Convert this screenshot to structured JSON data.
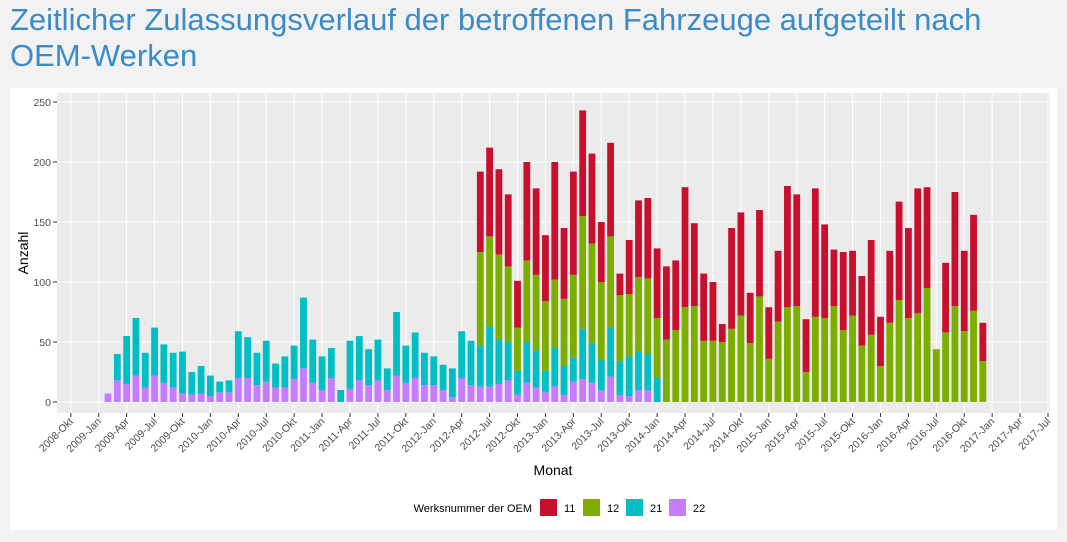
{
  "chart_data": {
    "type": "stacked-bar",
    "title": "Zeitlicher Zulassungsverlauf der betroffenen Fahrzeuge aufgeteilt nach OEM-Werken",
    "x_label": "Monat",
    "y_label": "Anzahl",
    "legend_title": "Werksnummer der OEM",
    "legend": "bottom",
    "grid": true,
    "x": [
      "2009-02",
      "2009-03",
      "2009-04",
      "2009-05",
      "2009-06",
      "2009-07",
      "2009-08",
      "2009-09",
      "2009-10",
      "2009-11",
      "2009-12",
      "2010-01",
      "2010-02",
      "2010-03",
      "2010-04",
      "2010-05",
      "2010-06",
      "2010-07",
      "2010-08",
      "2010-09",
      "2010-10",
      "2010-11",
      "2010-12",
      "2011-01",
      "2011-02",
      "2011-03",
      "2011-04",
      "2011-05",
      "2011-06",
      "2011-07",
      "2011-08",
      "2011-09",
      "2011-10",
      "2011-11",
      "2011-12",
      "2012-01",
      "2012-02",
      "2012-03",
      "2012-04",
      "2012-05",
      "2012-06",
      "2012-07",
      "2012-08",
      "2012-09",
      "2012-10",
      "2012-11",
      "2012-12",
      "2013-01",
      "2013-02",
      "2013-03",
      "2013-04",
      "2013-05",
      "2013-06",
      "2013-07",
      "2013-08",
      "2013-09",
      "2013-10",
      "2013-11",
      "2013-12",
      "2014-01",
      "2014-02",
      "2014-03",
      "2014-04",
      "2014-05",
      "2014-06",
      "2014-07",
      "2014-08",
      "2014-09",
      "2014-10",
      "2014-11",
      "2014-12",
      "2015-01",
      "2015-02",
      "2015-03",
      "2015-04",
      "2015-05",
      "2015-06",
      "2015-07",
      "2015-08",
      "2015-09",
      "2015-10",
      "2015-11",
      "2015-12",
      "2016-01",
      "2016-02",
      "2016-03",
      "2016-04",
      "2016-05",
      "2016-06",
      "2016-07",
      "2016-08",
      "2016-09",
      "2016-10",
      "2016-11",
      "2016-12"
    ],
    "series": [
      {
        "name": "11",
        "color": "#c8102e",
        "values": [
          0,
          0,
          0,
          0,
          0,
          0,
          0,
          0,
          0,
          0,
          0,
          0,
          0,
          0,
          0,
          0,
          0,
          0,
          0,
          0,
          0,
          0,
          0,
          0,
          0,
          0,
          0,
          0,
          0,
          0,
          0,
          0,
          0,
          0,
          0,
          0,
          0,
          0,
          0,
          0,
          67,
          74,
          71,
          60,
          39,
          82,
          72,
          55,
          98,
          59,
          86,
          88,
          75,
          50,
          78,
          18,
          45,
          64,
          67,
          58,
          61,
          58,
          100,
          69,
          56,
          49,
          15,
          84,
          86,
          42,
          72,
          43,
          59,
          101,
          93,
          44,
          107,
          78,
          47,
          65,
          54,
          58,
          79,
          41,
          60,
          82,
          75,
          104,
          84,
          0,
          58,
          95,
          67,
          80,
          32
        ]
      },
      {
        "name": "12",
        "color": "#7cae00",
        "values": [
          0,
          0,
          0,
          0,
          0,
          0,
          0,
          0,
          0,
          0,
          0,
          0,
          0,
          0,
          0,
          0,
          0,
          0,
          0,
          0,
          0,
          0,
          0,
          0,
          0,
          0,
          0,
          0,
          0,
          0,
          0,
          0,
          0,
          0,
          0,
          0,
          0,
          0,
          0,
          0,
          78,
          75,
          71,
          63,
          36,
          68,
          63,
          58,
          57,
          56,
          69,
          94,
          83,
          65,
          76,
          55,
          52,
          62,
          63,
          50,
          52,
          60,
          79,
          80,
          51,
          51,
          50,
          61,
          72,
          49,
          88,
          36,
          67,
          79,
          80,
          25,
          71,
          70,
          80,
          60,
          72,
          47,
          56,
          30,
          66,
          85,
          70,
          74,
          95,
          44,
          58,
          80,
          59,
          76,
          34
        ]
      },
      {
        "name": "21",
        "color": "#00bfc4",
        "values": [
          0,
          22,
          40,
          48,
          29,
          40,
          32,
          29,
          35,
          19,
          23,
          17,
          9,
          10,
          39,
          34,
          27,
          34,
          20,
          26,
          28,
          59,
          36,
          28,
          25,
          10,
          40,
          37,
          30,
          34,
          18,
          53,
          31,
          38,
          27,
          24,
          21,
          24,
          39,
          37,
          34,
          50,
          37,
          32,
          20,
          34,
          31,
          18,
          32,
          24,
          20,
          42,
          33,
          25,
          41,
          28,
          33,
          32,
          30,
          20,
          0,
          0,
          0,
          0,
          0,
          0,
          0,
          0,
          0,
          0,
          0,
          0,
          0,
          0,
          0,
          0,
          0,
          0,
          0,
          0,
          0,
          0,
          0,
          0,
          0,
          0,
          0,
          0,
          0,
          0,
          0,
          0,
          0,
          0,
          0
        ]
      },
      {
        "name": "22",
        "color": "#c77cff",
        "values": [
          7,
          18,
          15,
          22,
          12,
          22,
          16,
          12,
          7,
          6,
          7,
          5,
          8,
          8,
          20,
          20,
          14,
          17,
          12,
          12,
          19,
          28,
          16,
          10,
          20,
          0,
          11,
          18,
          14,
          18,
          10,
          22,
          16,
          20,
          14,
          14,
          10,
          4,
          20,
          14,
          13,
          13,
          15,
          18,
          6,
          16,
          12,
          8,
          13,
          6,
          17,
          19,
          16,
          10,
          21,
          6,
          5,
          10,
          10,
          0,
          0,
          0,
          0,
          0,
          0,
          0,
          0,
          0,
          0,
          0,
          0,
          0,
          0,
          0,
          0,
          0,
          0,
          0,
          0,
          0,
          0,
          0,
          0,
          0,
          0,
          0,
          0,
          0,
          0,
          0,
          0,
          0,
          0,
          0,
          0
        ]
      }
    ],
    "xlim": [
      "2008-10",
      "2017-07"
    ],
    "xticks": [
      {
        "value": "2008-10",
        "label": "2008-Okt"
      },
      {
        "value": "2009-01",
        "label": "2009-Jan"
      },
      {
        "value": "2009-04",
        "label": "2009-Apr"
      },
      {
        "value": "2009-07",
        "label": "2009-Jul"
      },
      {
        "value": "2009-10",
        "label": "2009-Okt"
      },
      {
        "value": "2010-01",
        "label": "2010-Jan"
      },
      {
        "value": "2010-04",
        "label": "2010-Apr"
      },
      {
        "value": "2010-07",
        "label": "2010-Jul"
      },
      {
        "value": "2010-10",
        "label": "2010-Okt"
      },
      {
        "value": "2011-01",
        "label": "2011-Jan"
      },
      {
        "value": "2011-04",
        "label": "2011-Apr"
      },
      {
        "value": "2011-07",
        "label": "2011-Jul"
      },
      {
        "value": "2011-10",
        "label": "2011-Okt"
      },
      {
        "value": "2012-01",
        "label": "2012-Jan"
      },
      {
        "value": "2012-04",
        "label": "2012-Apr"
      },
      {
        "value": "2012-07",
        "label": "2012-Jul"
      },
      {
        "value": "2012-10",
        "label": "2012-Okt"
      },
      {
        "value": "2013-01",
        "label": "2013-Jan"
      },
      {
        "value": "2013-04",
        "label": "2013-Apr"
      },
      {
        "value": "2013-07",
        "label": "2013-Jul"
      },
      {
        "value": "2013-10",
        "label": "2013-Okt"
      },
      {
        "value": "2014-01",
        "label": "2014-Jan"
      },
      {
        "value": "2014-04",
        "label": "2014-Apr"
      },
      {
        "value": "2014-07",
        "label": "2014-Jul"
      },
      {
        "value": "2014-10",
        "label": "2014-Okt"
      },
      {
        "value": "2015-01",
        "label": "2015-Jan"
      },
      {
        "value": "2015-04",
        "label": "2015-Apr"
      },
      {
        "value": "2015-07",
        "label": "2015-Jul"
      },
      {
        "value": "2015-10",
        "label": "2015-Okt"
      },
      {
        "value": "2016-01",
        "label": "2016-Jan"
      },
      {
        "value": "2016-04",
        "label": "2016-Apr"
      },
      {
        "value": "2016-07",
        "label": "2016-Jul"
      },
      {
        "value": "2016-10",
        "label": "2016-Okt"
      },
      {
        "value": "2017-01",
        "label": "2017-Jan"
      },
      {
        "value": "2017-04",
        "label": "2017-Apr"
      },
      {
        "value": "2017-07",
        "label": "2017-Jul"
      }
    ],
    "ylim": [
      0,
      250
    ],
    "yticks": [
      0,
      50,
      100,
      150,
      200,
      250
    ]
  }
}
